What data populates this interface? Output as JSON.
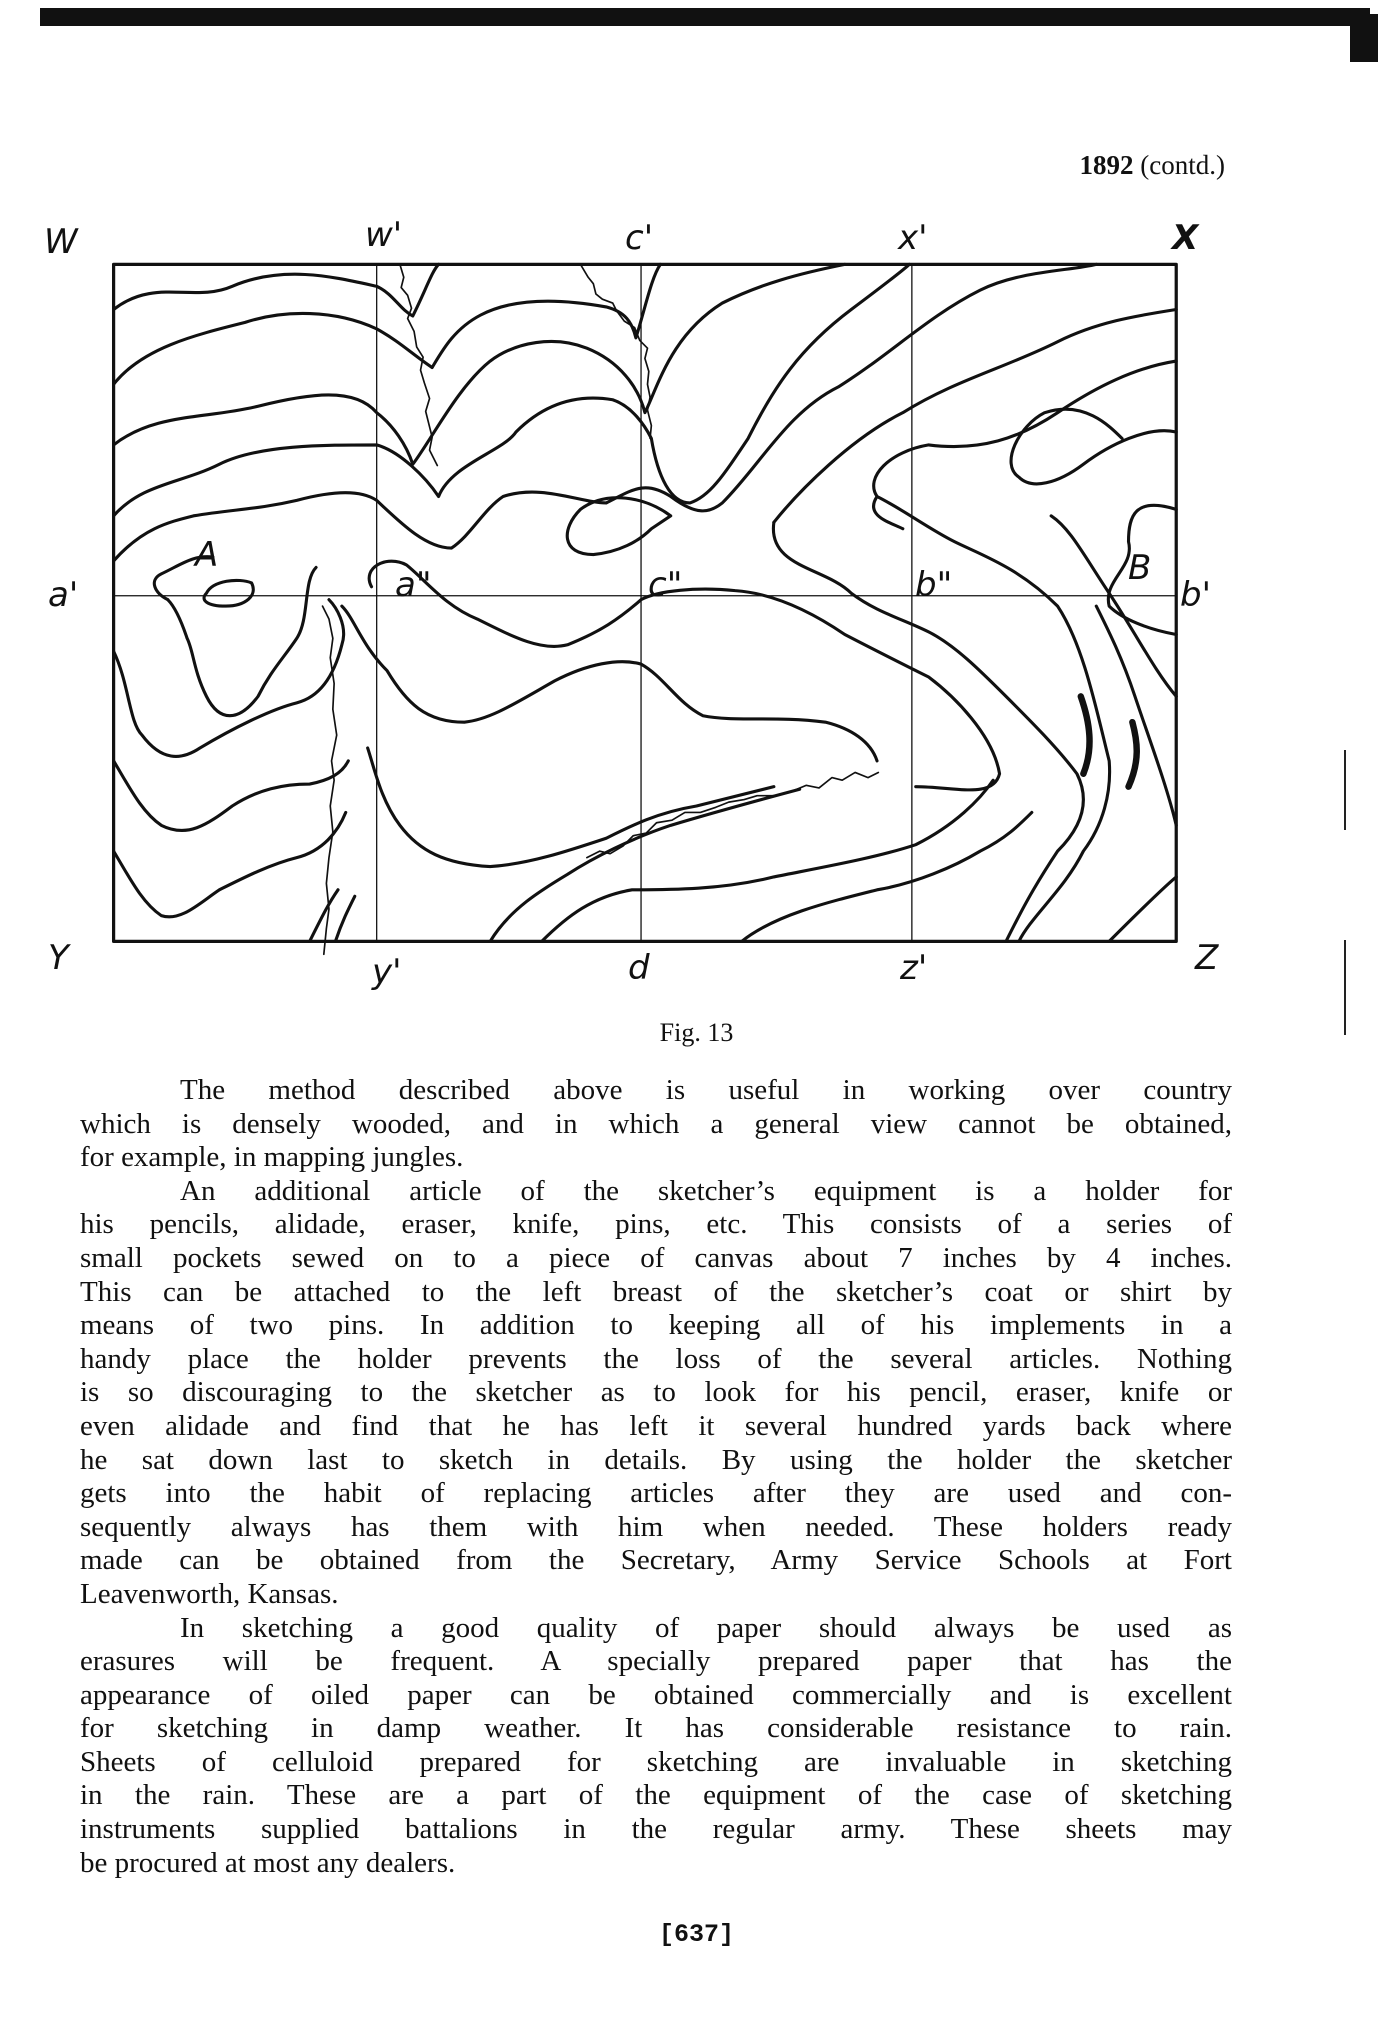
{
  "header": {
    "year": "1892",
    "note": "(contd.)"
  },
  "figure": {
    "caption": "Fig. 13",
    "labels": {
      "W": "W",
      "w1": "w'",
      "c1": "c'",
      "x1": "x'",
      "X": "X",
      "a1": "a'",
      "a2": "a\"",
      "c2": "c\"",
      "b2": "b\"",
      "b1": "b'",
      "A": "A",
      "B": "B",
      "Y": "Y",
      "y1": "y'",
      "d": "d",
      "z1": "z'",
      "Z": "Z"
    }
  },
  "body": {
    "paragraphs": [
      {
        "lines": [
          "The method described above is useful in working over country",
          "which is densely wooded, and in which a general view cannot be obtained,",
          "for example, in mapping jungles."
        ]
      },
      {
        "lines": [
          "An additional article of the sketcher’s equipment is a holder for",
          "his pencils, alidade, eraser, knife, pins, etc.  This consists of a series of",
          "small pockets sewed on to a piece of canvas about 7 inches by 4 inches.",
          "This can be attached to the left breast of the sketcher’s coat or shirt by",
          "means of two pins.  In addition to keeping all of his implements in a",
          "handy place the holder prevents the loss of the several articles.  Nothing",
          "is so discouraging to the sketcher as to look for his pencil, eraser, knife or",
          "even alidade and find that he has left it several hundred yards back where",
          "he sat down last to sketch in details.  By using the holder the sketcher",
          "gets into the habit of replacing articles after they are used and con-",
          "sequently always has them with him when needed.  These holders ready",
          "made can be obtained from the Secretary, Army Service Schools at Fort",
          "Leavenworth, Kansas."
        ]
      },
      {
        "lines": [
          "In sketching a good quality of paper should always be used as",
          "erasures will be frequent.  A specially prepared paper that has the",
          "appearance of oiled paper can be obtained commercially and is excellent",
          "for sketching in damp weather.  It has considerable resistance to rain.",
          "Sheets of celluloid prepared for sketching are invaluable in sketching",
          "in the rain.  These are a part of the equipment of the case of sketching",
          "instruments supplied battalions in the regular army.  These sheets may",
          "be procured at most any dealers."
        ]
      }
    ]
  },
  "page_number": "[637]"
}
